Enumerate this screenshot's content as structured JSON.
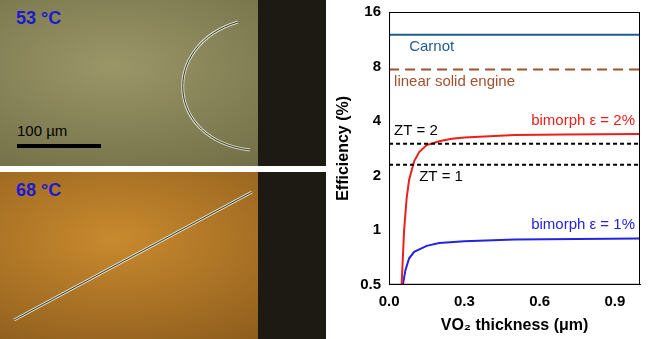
{
  "chart_data": {
    "type": "line",
    "x_label": "VO₂ thickness (μm)",
    "y_label": "Efficiency (%)",
    "log": "y",
    "grid": false,
    "xlim": [
      0,
      1.0
    ],
    "xticks": [
      {
        "value": 0,
        "label": "0.0"
      },
      0.3,
      0.6,
      0.9
    ],
    "ylim": [
      0.5,
      16
    ],
    "yticks": [
      0.5,
      1,
      2,
      4,
      8,
      16
    ],
    "series": [
      {
        "name": "Carnot",
        "color": "#1f5c8a",
        "line_style": "solid",
        "x": [
          0,
          1.0
        ],
        "values": [
          12,
          12
        ]
      },
      {
        "name": "linear solid engine",
        "color": "#a0522d",
        "line_style": "dashed",
        "x": [
          0,
          1.0
        ],
        "values": [
          7.7,
          7.7
        ]
      },
      {
        "name": "ZT = 2",
        "color": "#000000",
        "line_style": "dotted",
        "x": [
          0,
          1.0
        ],
        "values": [
          3.0,
          3.0
        ]
      },
      {
        "name": "ZT = 1",
        "color": "#000000",
        "line_style": "dotted",
        "x": [
          0,
          1.0
        ],
        "values": [
          2.3,
          2.3
        ]
      },
      {
        "name": "bimorph ε = 2%",
        "color": "#e8211c",
        "line_style": "solid",
        "x": [
          0.05,
          0.06,
          0.07,
          0.08,
          0.1,
          0.12,
          0.15,
          0.2,
          0.25,
          0.3,
          0.4,
          0.5,
          0.7,
          1.0
        ],
        "values": [
          0.5,
          1.0,
          1.5,
          1.9,
          2.4,
          2.7,
          2.95,
          3.1,
          3.2,
          3.25,
          3.3,
          3.35,
          3.38,
          3.4
        ]
      },
      {
        "name": "bimorph ε = 1%",
        "color": "#2424e0",
        "line_style": "solid",
        "x": [
          0.055,
          0.065,
          0.08,
          0.1,
          0.15,
          0.2,
          0.3,
          0.5,
          1.0
        ],
        "values": [
          0.5,
          0.6,
          0.7,
          0.76,
          0.82,
          0.85,
          0.87,
          0.89,
          0.9
        ]
      }
    ]
  },
  "panels": [
    {
      "label": "53 °C",
      "scale_bar": "100 µm"
    },
    {
      "label": "68 °C"
    }
  ]
}
